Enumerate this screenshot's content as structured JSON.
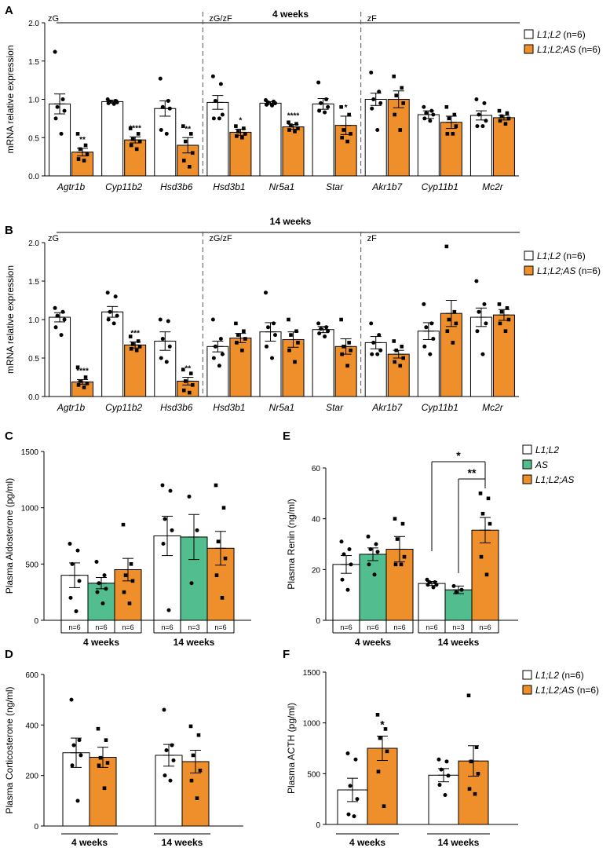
{
  "colors": {
    "white": "#ffffff",
    "orange": "#ee8f2c",
    "green": "#52bd8f",
    "axis": "#000000"
  },
  "chart_data": [
    {
      "panel": "A",
      "type": "bar",
      "title": "4 weeks",
      "ylabel": "mRNA relative expression",
      "ylim": [
        0,
        2.0
      ],
      "yticks": [
        "0.0",
        "0.5",
        "1.0",
        "1.5",
        "2.0"
      ],
      "regions": [
        "zG",
        "zG/zF",
        "zF"
      ],
      "categories": [
        "Agtr1b",
        "Cyp11b2",
        "Hsd3b6",
        "Hsd3b1",
        "Nr5a1",
        "Star",
        "Akr1b7",
        "Cyp11b1",
        "Mc2r"
      ],
      "series": [
        {
          "name": "L1;L2",
          "n_label": "(n=6)",
          "color": "white",
          "values": [
            0.94,
            0.97,
            0.88,
            0.96,
            0.95,
            0.94,
            1.0,
            0.8,
            0.79
          ],
          "sem": [
            0.13,
            0.02,
            0.1,
            0.09,
            0.02,
            0.07,
            0.08,
            0.05,
            0.06
          ],
          "points": [
            [
              1.62,
              1.0,
              0.9,
              0.85,
              0.75,
              0.55
            ],
            [
              1.0,
              0.98,
              0.97,
              0.96,
              0.95,
              0.94
            ],
            [
              1.27,
              0.98,
              0.9,
              0.88,
              0.6,
              0.55
            ],
            [
              1.3,
              1.2,
              0.98,
              0.8,
              0.75,
              0.75
            ],
            [
              0.99,
              0.97,
              0.96,
              0.95,
              0.93,
              0.92
            ],
            [
              1.22,
              1.0,
              0.95,
              0.9,
              0.85,
              0.83
            ],
            [
              1.35,
              1.1,
              1.0,
              0.95,
              0.88,
              0.6
            ],
            [
              0.9,
              0.85,
              0.82,
              0.8,
              0.75,
              0.72
            ],
            [
              1.0,
              0.95,
              0.8,
              0.72,
              0.65,
              0.65
            ]
          ]
        },
        {
          "name": "L1;L2;AS",
          "n_label": "(n=6)",
          "color": "orange",
          "values": [
            0.31,
            0.47,
            0.4,
            0.57,
            0.64,
            0.66,
            1.0,
            0.7,
            0.76
          ],
          "sem": [
            0.05,
            0.04,
            0.1,
            0.04,
            0.03,
            0.12,
            0.11,
            0.08,
            0.03
          ],
          "points": [
            [
              0.55,
              0.4,
              0.35,
              0.28,
              0.22,
              0.2
            ],
            [
              0.62,
              0.55,
              0.48,
              0.45,
              0.4,
              0.35
            ],
            [
              0.65,
              0.55,
              0.45,
              0.3,
              0.2,
              0.12
            ],
            [
              0.65,
              0.62,
              0.58,
              0.55,
              0.52,
              0.5
            ],
            [
              0.7,
              0.68,
              0.66,
              0.62,
              0.6,
              0.58
            ],
            [
              0.9,
              0.8,
              0.6,
              0.55,
              0.5,
              0.45
            ],
            [
              1.3,
              1.15,
              1.05,
              0.95,
              0.8,
              0.6
            ],
            [
              0.9,
              0.8,
              0.75,
              0.65,
              0.55,
              0.55
            ],
            [
              0.85,
              0.82,
              0.78,
              0.75,
              0.72,
              0.68
            ]
          ]
        }
      ],
      "significance": [
        "**",
        "****",
        "**",
        "*",
        "****",
        "*",
        "",
        "",
        ""
      ]
    },
    {
      "panel": "B",
      "type": "bar",
      "title": "14 weeks",
      "ylabel": "mRNA relative expression",
      "ylim": [
        0,
        2.0
      ],
      "yticks": [
        "0.0",
        "0.5",
        "1.0",
        "1.5",
        "2.0"
      ],
      "regions": [
        "zG",
        "zG/zF",
        "zF"
      ],
      "categories": [
        "Agtr1b",
        "Cyp11b2",
        "Hsd3b6",
        "Hsd3b1",
        "Nr5a1",
        "Star",
        "Akr1b7",
        "Cyp11b1",
        "Mc2r"
      ],
      "series": [
        {
          "name": "L1;L2",
          "n_label": "(n=6)",
          "color": "white",
          "values": [
            1.03,
            1.1,
            0.72,
            0.65,
            0.84,
            0.87,
            0.7,
            0.85,
            1.03
          ],
          "sem": [
            0.06,
            0.07,
            0.12,
            0.07,
            0.12,
            0.04,
            0.08,
            0.11,
            0.12
          ],
          "points": [
            [
              1.15,
              1.1,
              1.05,
              1.0,
              0.9,
              0.8
            ],
            [
              1.35,
              1.3,
              1.1,
              1.05,
              1.0,
              0.95
            ],
            [
              1.0,
              0.98,
              0.75,
              0.65,
              0.5,
              0.45
            ],
            [
              1.0,
              0.75,
              0.65,
              0.55,
              0.5,
              0.4
            ],
            [
              1.35,
              0.95,
              0.9,
              0.8,
              0.65,
              0.5
            ],
            [
              0.95,
              0.9,
              0.88,
              0.85,
              0.82,
              0.78
            ],
            [
              0.95,
              0.8,
              0.7,
              0.6,
              0.55,
              0.55
            ],
            [
              1.2,
              0.95,
              0.9,
              0.75,
              0.65,
              0.55
            ],
            [
              1.5,
              1.2,
              1.1,
              0.95,
              0.85,
              0.55
            ]
          ]
        },
        {
          "name": "L1;L2;AS",
          "n_label": "(n=6)",
          "color": "orange",
          "values": [
            0.19,
            0.67,
            0.2,
            0.76,
            0.74,
            0.65,
            0.55,
            1.08,
            1.06
          ],
          "sem": [
            0.03,
            0.04,
            0.05,
            0.06,
            0.1,
            0.1,
            0.05,
            0.17,
            0.07
          ],
          "points": [
            [
              0.38,
              0.25,
              0.2,
              0.17,
              0.15,
              0.12
            ],
            [
              0.78,
              0.72,
              0.68,
              0.65,
              0.62,
              0.6
            ],
            [
              0.35,
              0.3,
              0.2,
              0.15,
              0.08,
              0.05
            ],
            [
              0.95,
              0.85,
              0.8,
              0.75,
              0.7,
              0.6
            ],
            [
              1.0,
              0.85,
              0.8,
              0.7,
              0.6,
              0.45
            ],
            [
              1.0,
              0.7,
              0.65,
              0.6,
              0.55,
              0.4
            ],
            [
              0.72,
              0.65,
              0.6,
              0.5,
              0.45,
              0.4
            ],
            [
              1.95,
              1.1,
              1.0,
              0.95,
              0.85,
              0.7
            ],
            [
              1.2,
              1.15,
              1.1,
              1.0,
              0.95,
              0.85
            ]
          ]
        }
      ],
      "significance": [
        "****",
        "***",
        "**",
        "",
        "",
        "",
        "",
        "",
        ""
      ]
    },
    {
      "panel": "C",
      "type": "bar",
      "ylabel": "Plasma Aldosterone (pg/ml)",
      "ylim": [
        0,
        1500
      ],
      "yticks": [
        "0",
        "500",
        "1000",
        "1500"
      ],
      "groups": [
        "4 weeks",
        "14 weeks"
      ],
      "bars": [
        {
          "series": "L1;L2",
          "color": "white",
          "value": 400,
          "sem": 110,
          "n": "n=6",
          "points": [
            680,
            620,
            500,
            350,
            200,
            80
          ]
        },
        {
          "series": "AS",
          "color": "green",
          "value": 330,
          "sem": 50,
          "n": "n=6",
          "points": [
            520,
            400,
            330,
            280,
            250,
            150
          ]
        },
        {
          "series": "L1;L2;AS",
          "color": "orange",
          "value": 450,
          "sem": 100,
          "n": "n=6",
          "points": [
            850,
            500,
            400,
            350,
            250,
            150
          ]
        },
        {
          "series": "L1;L2",
          "color": "white",
          "value": 750,
          "sem": 175,
          "n": "n=6",
          "points": [
            1200,
            1150,
            900,
            800,
            680,
            90
          ]
        },
        {
          "series": "AS",
          "color": "green",
          "value": 740,
          "sem": 200,
          "n": "n=3",
          "points": [
            1100,
            800,
            330
          ]
        },
        {
          "series": "L1;L2;AS",
          "color": "orange",
          "value": 640,
          "sem": 150,
          "n": "n=6",
          "points": [
            1200,
            1000,
            700,
            550,
            400,
            200
          ]
        }
      ]
    },
    {
      "panel": "E",
      "type": "bar",
      "ylabel": "Plasma Renin (ng/ml)",
      "ylim": [
        0,
        60
      ],
      "yticks": [
        "0",
        "20",
        "40",
        "60"
      ],
      "groups": [
        "4 weeks",
        "14 weeks"
      ],
      "legend": [
        "L1;L2",
        "AS",
        "L1;L2;AS"
      ],
      "bars": [
        {
          "series": "L1;L2",
          "color": "white",
          "value": 22,
          "sem": 3.5,
          "n": "n=6",
          "points": [
            31,
            28,
            26,
            22,
            16,
            12
          ]
        },
        {
          "series": "AS",
          "color": "green",
          "value": 26,
          "sem": 2.5,
          "n": "n=6",
          "points": [
            33,
            30,
            28,
            27,
            22,
            18
          ]
        },
        {
          "series": "L1;L2;AS",
          "color": "orange",
          "value": 28,
          "sem": 5,
          "n": "n=6",
          "points": [
            40,
            38,
            32,
            25,
            22,
            22
          ]
        },
        {
          "series": "L1;L2",
          "color": "white",
          "value": 14.5,
          "sem": 0.8,
          "n": "n=6",
          "points": [
            16,
            15,
            15,
            14,
            14,
            13
          ]
        },
        {
          "series": "AS",
          "color": "green",
          "value": 12,
          "sem": 1.5,
          "n": "n=3",
          "points": [
            13.5,
            12,
            11
          ]
        },
        {
          "series": "L1;L2;AS",
          "color": "orange",
          "value": 35.5,
          "sem": 5,
          "n": "n=6",
          "points": [
            50,
            48,
            42,
            38,
            25,
            18
          ]
        }
      ],
      "brackets": [
        {
          "from_bar": 3,
          "to_bar": 5,
          "label": "*"
        },
        {
          "from_bar": 4,
          "to_bar": 5,
          "label": "**"
        }
      ]
    },
    {
      "panel": "D",
      "type": "bar",
      "ylabel": "Plasma Corticosterone (ng/ml)",
      "ylim": [
        0,
        600
      ],
      "yticks": [
        "0",
        "200",
        "400",
        "600"
      ],
      "groups": [
        "4 weeks",
        "14 weeks"
      ],
      "bars": [
        {
          "series": "L1;L2",
          "color": "white",
          "value": 290,
          "sem": 58,
          "points": [
            500,
            340,
            320,
            280,
            240,
            100
          ]
        },
        {
          "series": "L1;L2;AS",
          "color": "orange",
          "value": 272,
          "sem": 40,
          "points": [
            385,
            340,
            270,
            250,
            240,
            150
          ]
        },
        {
          "series": "L1;L2",
          "color": "white",
          "value": 280,
          "sem": 43,
          "points": [
            460,
            320,
            300,
            260,
            200,
            180
          ]
        },
        {
          "series": "L1;L2;AS",
          "color": "orange",
          "value": 255,
          "sem": 45,
          "points": [
            395,
            360,
            280,
            220,
            180,
            110
          ]
        }
      ]
    },
    {
      "panel": "F",
      "type": "bar",
      "ylabel": "Plasma ACTH (pg/ml)",
      "ylim": [
        0,
        1500
      ],
      "yticks": [
        "0",
        "500",
        "1000",
        "1500"
      ],
      "groups": [
        "4 weeks",
        "14 weeks"
      ],
      "legend": [
        "L1;L2 (n=6)",
        "L1;L2;AS (n=6)"
      ],
      "bars": [
        {
          "series": "L1;L2",
          "color": "white",
          "value": 340,
          "sem": 115,
          "points": [
            700,
            640,
            380,
            250,
            100,
            80
          ]
        },
        {
          "series": "L1;L2;AS",
          "color": "orange",
          "value": 750,
          "sem": 120,
          "points": [
            1080,
            940,
            850,
            720,
            520,
            180
          ]
        },
        {
          "series": "L1;L2",
          "color": "white",
          "value": 485,
          "sem": 65,
          "points": [
            640,
            620,
            540,
            480,
            390,
            290
          ]
        },
        {
          "series": "L1;L2;AS",
          "color": "orange",
          "value": 625,
          "sem": 150,
          "points": [
            1270,
            760,
            620,
            500,
            350,
            300
          ]
        }
      ],
      "significance": [
        "",
        "*",
        "",
        ""
      ]
    }
  ]
}
